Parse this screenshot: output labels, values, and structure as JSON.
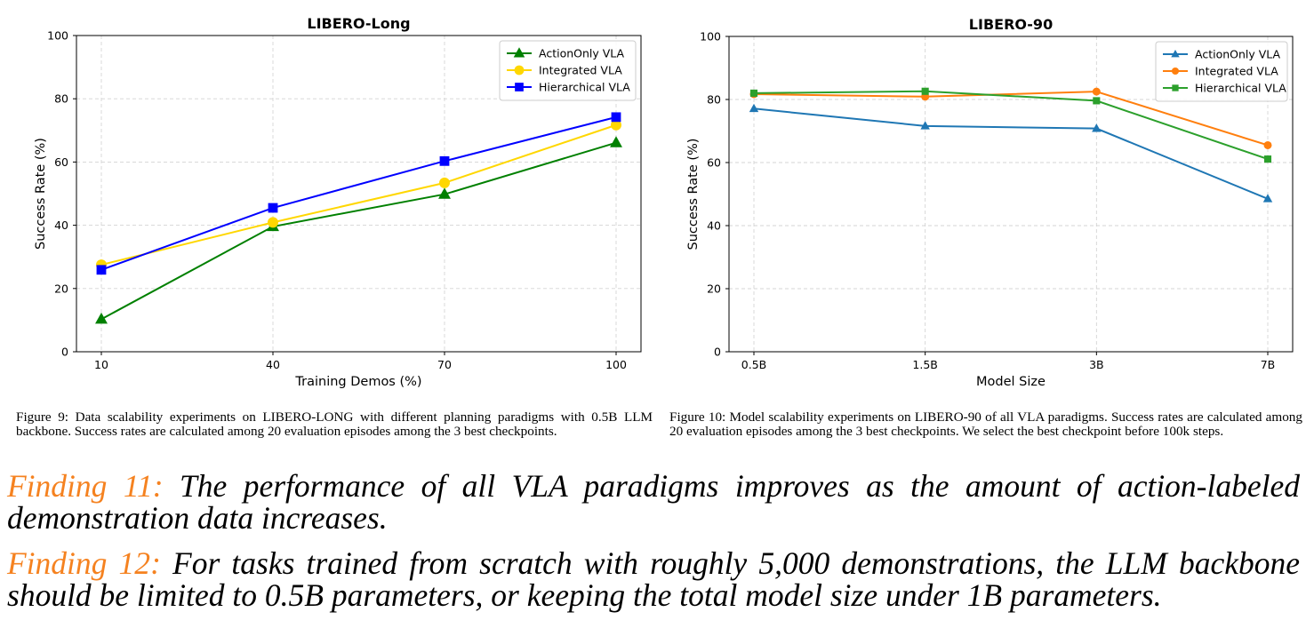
{
  "figures": [
    {
      "caption": "Figure 9: Data scalability experiments on LIBERO-LONG with different planning paradigms with 0.5B LLM backbone. Success rates are calculated among 20 evaluation episodes among the 3 best checkpoints."
    },
    {
      "caption": "Figure 10: Model scalability experiments on LIBERO-90 of all VLA paradigms. Success rates are calculated among 20 evaluation episodes among the 3 best checkpoints. We select the best checkpoint before 100k steps."
    }
  ],
  "findings": [
    {
      "label": "Finding 11",
      "sep": ": ",
      "text": "The performance of all VLA paradigms improves as the amount of action-labeled demonstration data increases."
    },
    {
      "label": "Finding 12",
      "sep": ": ",
      "text": "For tasks trained from scratch with roughly 5,000 demonstrations, the LLM backbone should be limited to 0.5B parameters, or keeping the total model size under 1B parameters."
    }
  ],
  "colors": {
    "finding_label": "#f58220"
  },
  "chart_data": [
    {
      "type": "line",
      "title": "LIBERO-Long",
      "xlabel": "Training Demos (%)",
      "ylabel": "Success Rate (%)",
      "categories": [
        "10",
        "40",
        "70",
        "100"
      ],
      "ylim": [
        0,
        100
      ],
      "yticks": [
        0,
        20,
        40,
        60,
        80,
        100
      ],
      "grid": true,
      "legend": "top-right",
      "series": [
        {
          "name": "ActionOnly VLA",
          "color": "#008000",
          "marker": "triangle",
          "values": [
            10.3,
            39.6,
            49.8,
            66.1
          ]
        },
        {
          "name": "Integrated VLA",
          "color": "#ffd700",
          "marker": "circle",
          "values": [
            27.5,
            40.9,
            53.4,
            71.7
          ]
        },
        {
          "name": "Hierarchical VLA",
          "color": "#0000ff",
          "marker": "square",
          "values": [
            25.9,
            45.5,
            60.3,
            74.2
          ]
        }
      ]
    },
    {
      "type": "line",
      "title": "LIBERO-90",
      "xlabel": "Model Size",
      "ylabel": "Success Rate (%)",
      "categories": [
        "0.5B",
        "1.5B",
        "3B",
        "7B"
      ],
      "ylim": [
        0,
        100
      ],
      "yticks": [
        0,
        20,
        40,
        60,
        80,
        100
      ],
      "grid": true,
      "legend": "top-right",
      "series": [
        {
          "name": "ActionOnly VLA",
          "color": "#1f77b4",
          "marker": "triangle",
          "values": [
            77.1,
            71.6,
            70.8,
            48.5
          ]
        },
        {
          "name": "Integrated VLA",
          "color": "#ff7f0e",
          "marker": "circle",
          "values": [
            81.7,
            80.9,
            82.5,
            65.5
          ]
        },
        {
          "name": "Hierarchical VLA",
          "color": "#2ca02c",
          "marker": "square",
          "values": [
            82.0,
            82.6,
            79.6,
            61.1
          ]
        }
      ]
    }
  ]
}
